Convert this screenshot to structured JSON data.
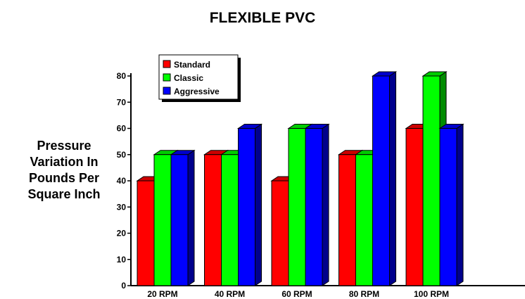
{
  "chart_data": {
    "type": "bar",
    "title": "FLEXIBLE PVC",
    "ylabel_lines": [
      "Pressure",
      "Variation In",
      "Pounds Per",
      "Square Inch"
    ],
    "xlabel": "",
    "categories": [
      "20 RPM",
      "40 RPM",
      "60 RPM",
      "80 RPM",
      "100 RPM"
    ],
    "series": [
      {
        "name": "Standard",
        "color": "#ff0000",
        "values": [
          40,
          50,
          40,
          50,
          60
        ]
      },
      {
        "name": "Classic",
        "color": "#00ff00",
        "values": [
          50,
          50,
          60,
          50,
          80
        ]
      },
      {
        "name": "Aggressive",
        "color": "#0000ff",
        "values": [
          50,
          60,
          60,
          80,
          60
        ]
      }
    ],
    "ylim": [
      0,
      80
    ],
    "yticks": [
      0,
      10,
      20,
      30,
      40,
      50,
      60,
      70,
      80
    ],
    "grid": false,
    "legend_position": "top-left",
    "style": "3d-bar"
  }
}
